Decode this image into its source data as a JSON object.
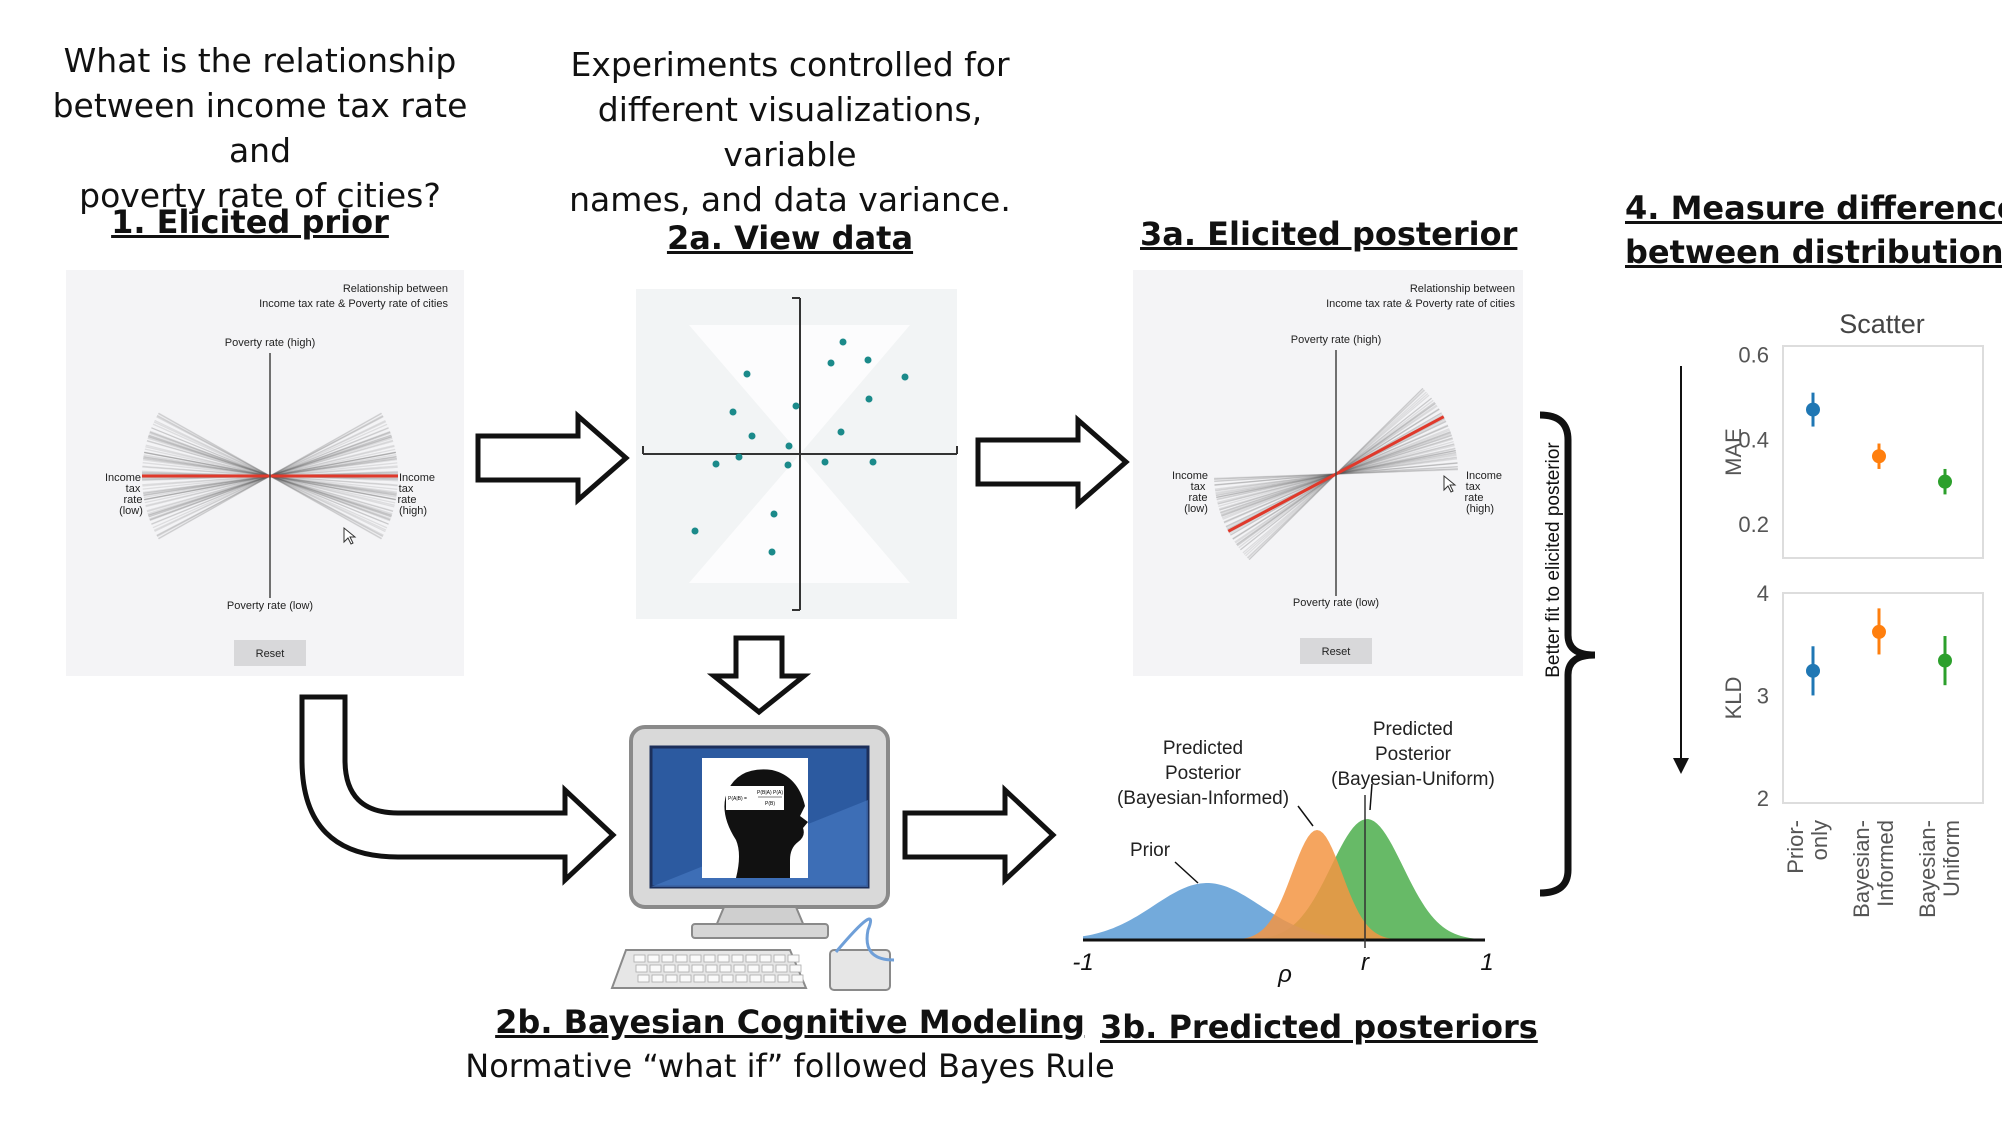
{
  "question": {
    "line1": "What is the relationship",
    "line2": "between income tax rate and",
    "line3": "poverty rate of cities?"
  },
  "experiments_note": {
    "line1": "Experiments controlled for",
    "line2": "different visualizations, variable",
    "line3": "names, and data variance."
  },
  "steps": {
    "elicited_prior": "1. Elicited prior",
    "view_data": "2a. View data",
    "elicited_posterior": "3a. Elicited posterior",
    "measure_difference_line1": "4. Measure difference",
    "measure_difference_line2": "between distributions",
    "bayesian_modeling": "2b. Bayesian Cognitive Modeling",
    "bayesian_modeling_sub": "Normative “what if” followed Bayes Rule",
    "predicted_posteriors": "3b. Predicted posteriors"
  },
  "elicitation_panel": {
    "title_line1": "Relationship between",
    "title_line2": "Income tax rate & Poverty rate of cities",
    "y_high": "Poverty rate (high)",
    "y_low": "Poverty rate (low)",
    "x_low_1": "Income",
    "x_low_2": "tax",
    "x_low_3": "rate",
    "x_low_4": "(low)",
    "x_high_1": "Income",
    "x_high_2": "tax",
    "x_high_3": "rate",
    "x_high_4": "(high)",
    "reset": "Reset"
  },
  "formula": {
    "lhs": "P(A|B) =",
    "num": "P(B|A) P(A)",
    "den": "P(B)"
  },
  "distributions": {
    "prior": "Prior",
    "informed_1": "Predicted",
    "informed_2": "Posterior",
    "informed_3": "(Bayesian-Informed)",
    "uniform_1": "Predicted",
    "uniform_2": "Posterior",
    "uniform_3": "(Bayesian-Uniform)",
    "tick_min": "-1",
    "tick_rho": "ρ",
    "tick_r": "r",
    "tick_max": "1",
    "colors": {
      "prior": "#5b9bd5",
      "informed": "#f39543",
      "uniform": "#4cae4c"
    }
  },
  "bracket_label": "Better fit to elicited posterior",
  "chart_data": {
    "type": "scatter",
    "title": "Scatter",
    "categories": [
      "Prior-only",
      "Bayesian-Informed",
      "Bayesian-Uniform"
    ],
    "category_labels": [
      [
        "Prior-",
        "only"
      ],
      [
        "Bayesian-",
        "Informed"
      ],
      [
        "Bayesian-",
        "Uniform"
      ]
    ],
    "colors": [
      "#1f77b4",
      "#ff7f0e",
      "#2ca02c"
    ],
    "panels": [
      {
        "ylabel": "MAE",
        "ylim": [
          0.12,
          0.62
        ],
        "yticks": [
          "0.6",
          "0.4",
          "0.2"
        ],
        "ytick_values": [
          0.6,
          0.4,
          0.2
        ],
        "values": [
          0.47,
          0.36,
          0.3
        ],
        "errors": [
          [
            0.43,
            0.51
          ],
          [
            0.33,
            0.39
          ],
          [
            0.27,
            0.33
          ]
        ]
      },
      {
        "ylabel": "KLD",
        "ylim": [
          1.95,
          4.0
        ],
        "yticks": [
          "4",
          "3",
          "2"
        ],
        "ytick_values": [
          4,
          3,
          2
        ],
        "values": [
          3.24,
          3.62,
          3.34
        ],
        "errors": [
          [
            3.0,
            3.48
          ],
          [
            3.4,
            3.85
          ],
          [
            3.1,
            3.58
          ]
        ]
      }
    ]
  }
}
